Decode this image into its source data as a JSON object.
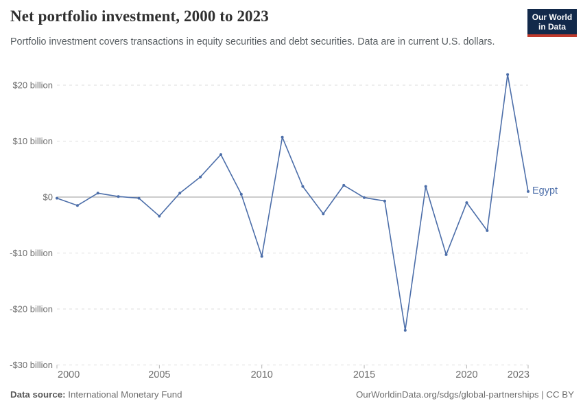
{
  "header": {
    "title": "Net portfolio investment, 2000 to 2023",
    "subtitle": "Portfolio investment covers transactions in equity securities and debt securities. Data are in current U.S. dollars.",
    "logo": {
      "line1": "Our World",
      "line2": "in Data",
      "bg_color": "#12294a",
      "accent_color": "#c0392b"
    }
  },
  "chart_data": {
    "type": "line",
    "title": "Net portfolio investment, 2000 to 2023",
    "xlabel": "",
    "ylabel": "",
    "xlim": [
      2000,
      2023
    ],
    "ylim": [
      -30,
      23
    ],
    "grid": "horizontal-dashed",
    "x": [
      2000,
      2001,
      2002,
      2003,
      2004,
      2005,
      2006,
      2007,
      2008,
      2009,
      2010,
      2011,
      2012,
      2013,
      2014,
      2015,
      2016,
      2017,
      2018,
      2019,
      2020,
      2021,
      2022,
      2023
    ],
    "series": [
      {
        "name": "Egypt",
        "color": "#4c6ea9",
        "values": [
          -0.2,
          -1.5,
          0.7,
          0.1,
          -0.2,
          -3.4,
          0.7,
          3.6,
          7.6,
          0.5,
          -10.6,
          10.7,
          1.9,
          -3.0,
          2.1,
          -0.1,
          -0.7,
          -23.8,
          1.9,
          -10.3,
          -1.0,
          -6.0,
          21.9,
          1.0
        ]
      }
    ],
    "x_ticks": [
      2000,
      2005,
      2010,
      2015,
      2020,
      2023
    ],
    "y_ticks": [
      {
        "value": 20,
        "label": "$20 billion"
      },
      {
        "value": 10,
        "label": "$10 billion"
      },
      {
        "value": 0,
        "label": "$0"
      },
      {
        "value": -10,
        "label": "-$10 billion"
      },
      {
        "value": -20,
        "label": "-$20 billion"
      },
      {
        "value": -30,
        "label": "-$30 billion"
      }
    ],
    "legend_position": "end-of-line-label",
    "colors": {
      "zero_line": "#9a9a9a",
      "gridline": "#dcdcdc",
      "tick": "#b3b3b3",
      "axis_text": "#6e6e6e"
    }
  },
  "footer": {
    "source_label": "Data source:",
    "source_value": "International Monetary Fund",
    "link": "OurWorldinData.org/sdgs/global-partnerships | CC BY"
  }
}
